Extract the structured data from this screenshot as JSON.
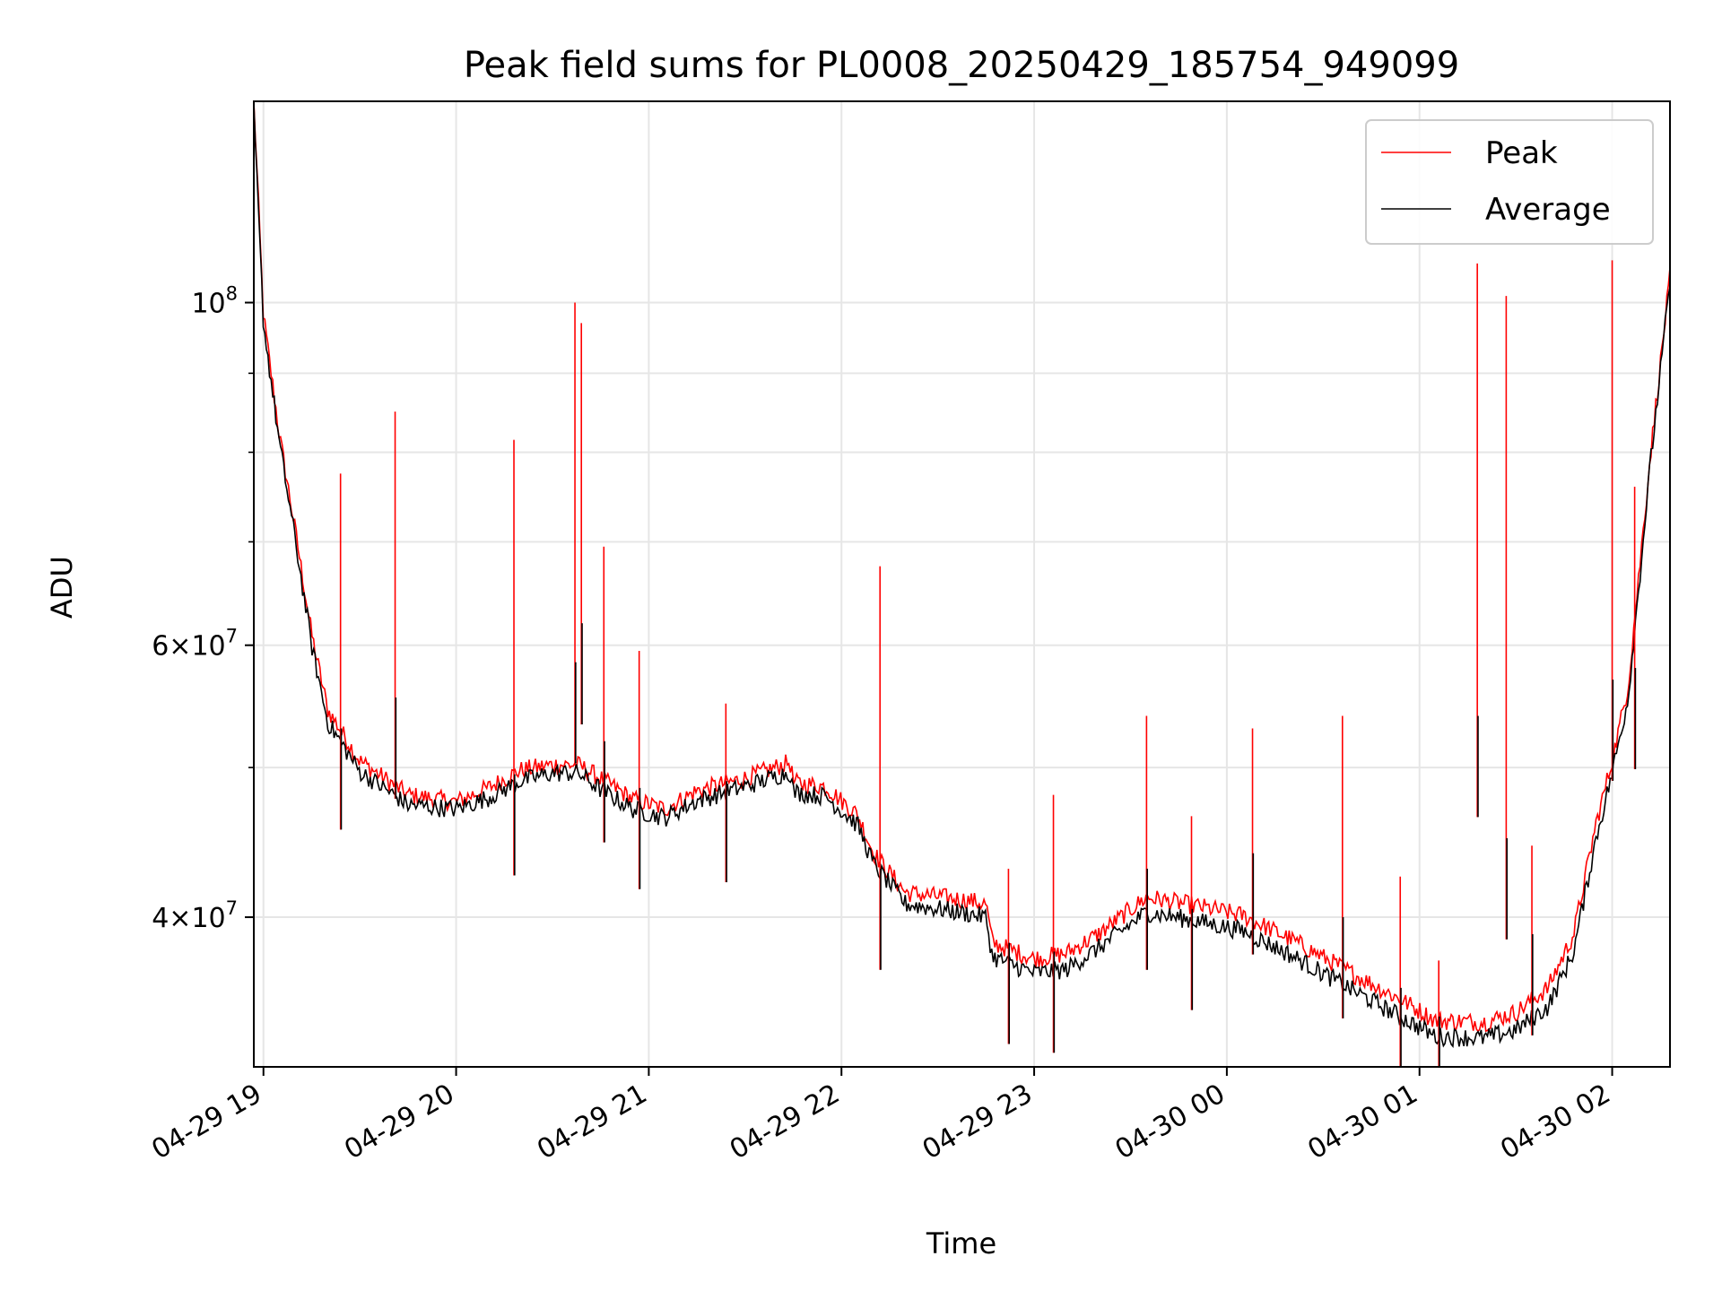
{
  "chart_data": {
    "type": "line",
    "title": "Peak field sums for PL0008_20250429_185754_949099",
    "xlabel": "Time",
    "ylabel": "ADU",
    "x_scale": "time",
    "y_scale": "log",
    "xlim": [
      "2025-04-29 18:57",
      "2025-04-30 02:18"
    ],
    "ylim": [
      32000000,
      135000000
    ],
    "x_ticks": [
      {
        "value": "2025-04-29 19:00",
        "label": "04-29 19"
      },
      {
        "value": "2025-04-29 20:00",
        "label": "04-29 20"
      },
      {
        "value": "2025-04-29 21:00",
        "label": "04-29 21"
      },
      {
        "value": "2025-04-29 22:00",
        "label": "04-29 22"
      },
      {
        "value": "2025-04-29 23:00",
        "label": "04-29 23"
      },
      {
        "value": "2025-04-30 00:00",
        "label": "04-30 00"
      },
      {
        "value": "2025-04-30 01:00",
        "label": "04-30 01"
      },
      {
        "value": "2025-04-30 02:00",
        "label": "04-30 02"
      }
    ],
    "y_major_ticks": [
      {
        "value": 40000000,
        "base": "4×10",
        "exp": "7"
      },
      {
        "value": 60000000,
        "base": "6×10",
        "exp": "7"
      },
      {
        "value": 100000000,
        "base": "10",
        "exp": "8"
      }
    ],
    "y_minor_ticks": [
      40000000,
      50000000,
      60000000,
      70000000,
      80000000,
      90000000,
      100000000
    ],
    "grid": true,
    "legend_position": "top-right",
    "series": [
      {
        "name": "Peak",
        "color": "#ff0000",
        "x": [
          "2025-04-29 18:57",
          "2025-04-29 19:00",
          "2025-04-29 19:05",
          "2025-04-29 19:10",
          "2025-04-29 19:15",
          "2025-04-29 19:20",
          "2025-04-29 19:30",
          "2025-04-29 19:45",
          "2025-04-29 20:00",
          "2025-04-29 20:10",
          "2025-04-29 20:20",
          "2025-04-29 20:30",
          "2025-04-29 20:38",
          "2025-04-29 20:45",
          "2025-04-29 20:55",
          "2025-04-29 21:05",
          "2025-04-29 21:15",
          "2025-04-29 21:30",
          "2025-04-29 21:44",
          "2025-04-29 21:45",
          "2025-04-29 21:55",
          "2025-04-29 22:05",
          "2025-04-29 22:10",
          "2025-04-29 22:20",
          "2025-04-29 22:40",
          "2025-04-29 22:45",
          "2025-04-29 22:47",
          "2025-04-29 23:00",
          "2025-04-29 23:10",
          "2025-04-29 23:20",
          "2025-04-29 23:35",
          "2025-04-29 23:50",
          "2025-04-30 00:05",
          "2025-04-30 00:20",
          "2025-04-30 00:40",
          "2025-04-30 00:55",
          "2025-04-30 01:05",
          "2025-04-30 01:20",
          "2025-04-30 01:30",
          "2025-04-30 01:40",
          "2025-04-30 01:48",
          "2025-04-30 01:55",
          "2025-04-30 02:00",
          "2025-04-30 02:05",
          "2025-04-30 02:12",
          "2025-04-30 02:18"
        ],
        "values": [
          135000000,
          98000000,
          82000000,
          71000000,
          61000000,
          54500000,
          50500000,
          48000000,
          47500000,
          48500000,
          49800000,
          50200000,
          50200000,
          49200000,
          47700000,
          47000000,
          48300000,
          49200000,
          50400000,
          48900000,
          48600000,
          46600000,
          44000000,
          41500000,
          41000000,
          40800000,
          38500000,
          37600000,
          37900000,
          39000000,
          41200000,
          40700000,
          40100000,
          38700000,
          36700000,
          35300000,
          34300000,
          34200000,
          34700000,
          36000000,
          39000000,
          46000000,
          50500000,
          56500000,
          80000000,
          104000000
        ]
      },
      {
        "name": "Average",
        "color": "#000000",
        "x": [
          "2025-04-29 18:57",
          "2025-04-29 19:00",
          "2025-04-29 19:05",
          "2025-04-29 19:10",
          "2025-04-29 19:15",
          "2025-04-29 19:20",
          "2025-04-29 19:30",
          "2025-04-29 19:45",
          "2025-04-29 20:00",
          "2025-04-29 20:10",
          "2025-04-29 20:20",
          "2025-04-29 20:30",
          "2025-04-29 20:38",
          "2025-04-29 20:45",
          "2025-04-29 20:55",
          "2025-04-29 21:05",
          "2025-04-29 21:15",
          "2025-04-29 21:30",
          "2025-04-29 21:44",
          "2025-04-29 21:45",
          "2025-04-29 21:55",
          "2025-04-29 22:05",
          "2025-04-29 22:10",
          "2025-04-29 22:20",
          "2025-04-29 22:40",
          "2025-04-29 22:45",
          "2025-04-29 22:47",
          "2025-04-29 23:00",
          "2025-04-29 23:10",
          "2025-04-29 23:20",
          "2025-04-29 23:35",
          "2025-04-29 23:50",
          "2025-04-30 00:05",
          "2025-04-30 00:20",
          "2025-04-30 00:40",
          "2025-04-30 00:55",
          "2025-04-30 01:05",
          "2025-04-30 01:20",
          "2025-04-30 01:30",
          "2025-04-30 01:40",
          "2025-04-30 01:48",
          "2025-04-30 01:55",
          "2025-04-30 02:00",
          "2025-04-30 02:05",
          "2025-04-30 02:12",
          "2025-04-30 02:18"
        ],
        "values": [
          133000000,
          97000000,
          81000000,
          70000000,
          60000000,
          53500000,
          49700000,
          47300000,
          47000000,
          47800000,
          49000000,
          49600000,
          49600000,
          48400000,
          47000000,
          46400000,
          47600000,
          48600000,
          49700000,
          48200000,
          47900000,
          45900000,
          43300000,
          40800000,
          40200000,
          40000000,
          37700000,
          36800000,
          37000000,
          38200000,
          40300000,
          39800000,
          39200000,
          37800000,
          35800000,
          34400000,
          33500000,
          33400000,
          33800000,
          35000000,
          38000000,
          45000000,
          49600000,
          55500000,
          79000000,
          103000000
        ]
      }
    ],
    "spikes": [
      {
        "series": "Peak",
        "x": "2025-04-29 19:24",
        "value": 77500000,
        "avg_value": 53000000
      },
      {
        "series": "Peak",
        "x": "2025-04-29 19:41",
        "value": 85000000,
        "avg_value": 55500000
      },
      {
        "series": "Peak",
        "x": "2025-04-29 20:18",
        "value": 81500000,
        "avg_value": 49500000
      },
      {
        "series": "Peak",
        "x": "2025-04-29 20:37",
        "value": 100000000,
        "avg_value": 58500000
      },
      {
        "series": "Peak",
        "x": "2025-04-29 20:39",
        "value": 97000000,
        "avg_value": 62000000
      },
      {
        "series": "Peak",
        "x": "2025-04-29 20:46",
        "value": 69500000,
        "avg_value": 52000000
      },
      {
        "series": "Peak",
        "x": "2025-04-29 20:57",
        "value": 59500000,
        "avg_value": 48500000
      },
      {
        "series": "Peak",
        "x": "2025-04-29 21:24",
        "value": 55000000,
        "avg_value": 49000000
      },
      {
        "series": "Peak",
        "x": "2025-04-29 22:12",
        "value": 67500000,
        "avg_value": 43000000
      },
      {
        "series": "Peak",
        "x": "2025-04-29 22:52",
        "value": 43000000,
        "avg_value": 38500000
      },
      {
        "series": "Peak",
        "x": "2025-04-29 23:06",
        "value": 48000000,
        "avg_value": 38000000
      },
      {
        "series": "Peak",
        "x": "2025-04-29 23:35",
        "value": 54000000,
        "avg_value": 43000000
      },
      {
        "series": "Peak",
        "x": "2025-04-29 23:49",
        "value": 46500000,
        "avg_value": 40500000
      },
      {
        "series": "Peak",
        "x": "2025-04-30 00:08",
        "value": 53000000,
        "avg_value": 44000000
      },
      {
        "series": "Peak",
        "x": "2025-04-30 00:36",
        "value": 54000000,
        "avg_value": 40000000
      },
      {
        "series": "Peak",
        "x": "2025-04-30 00:54",
        "value": 42500000,
        "avg_value": 36000000
      },
      {
        "series": "Peak",
        "x": "2025-04-30 01:06",
        "value": 37500000,
        "avg_value": 34500000
      },
      {
        "series": "Peak",
        "x": "2025-04-30 01:18",
        "value": 106000000,
        "avg_value": 54000000
      },
      {
        "series": "Peak",
        "x": "2025-04-30 01:27",
        "value": 101000000,
        "avg_value": 45000000
      },
      {
        "series": "Peak",
        "x": "2025-04-30 01:35",
        "value": 44500000,
        "avg_value": 39000000
      },
      {
        "series": "Peak",
        "x": "2025-04-30 02:00",
        "value": 106500000,
        "avg_value": 57000000
      },
      {
        "series": "Peak",
        "x": "2025-04-30 02:07",
        "value": 76000000,
        "avg_value": 58000000
      }
    ]
  }
}
